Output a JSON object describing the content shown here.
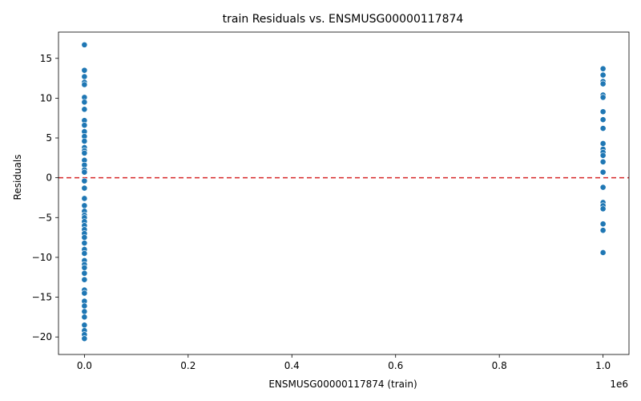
{
  "chart_data": {
    "type": "scatter",
    "title": "train Residuals vs. ENSMUSG00000117874",
    "xlabel": "ENSMUSG00000117874 (train)",
    "ylabel": "Residuals",
    "x_offset_text": "1e6",
    "xlim": [
      -50000,
      1050000
    ],
    "ylim": [
      -22.2,
      18.3
    ],
    "x_tick_labels": [
      "0.0",
      "0.2",
      "0.4",
      "0.6",
      "0.8",
      "1.0"
    ],
    "x_ticks": [
      0,
      200000,
      400000,
      600000,
      800000,
      1000000
    ],
    "y_tick_labels": [
      "−20",
      "−15",
      "−10",
      "−5",
      "0",
      "5",
      "10",
      "15"
    ],
    "y_ticks": [
      -20,
      -15,
      -10,
      -5,
      0,
      5,
      10,
      15
    ],
    "reference_line": {
      "y": 0,
      "color": "#d62728",
      "style": "dashed"
    },
    "series": [
      {
        "color": "#1f77b4",
        "points": [
          {
            "x": 0,
            "y": 16.7
          },
          {
            "x": 0,
            "y": 13.5
          },
          {
            "x": 0,
            "y": 12.7
          },
          {
            "x": 0,
            "y": 12.0
          },
          {
            "x": 0,
            "y": 11.7
          },
          {
            "x": 0,
            "y": 10.1
          },
          {
            "x": 0,
            "y": 9.5
          },
          {
            "x": 0,
            "y": 8.6
          },
          {
            "x": 0,
            "y": 7.2
          },
          {
            "x": 0,
            "y": 6.6
          },
          {
            "x": 0,
            "y": 5.8
          },
          {
            "x": 0,
            "y": 5.2
          },
          {
            "x": 0,
            "y": 4.6
          },
          {
            "x": 0,
            "y": 3.8
          },
          {
            "x": 0,
            "y": 3.4
          },
          {
            "x": 0,
            "y": 3.1
          },
          {
            "x": 0,
            "y": 2.2
          },
          {
            "x": 0,
            "y": 1.6
          },
          {
            "x": 0,
            "y": 1.0
          },
          {
            "x": 0,
            "y": 0.7
          },
          {
            "x": 0,
            "y": -0.4
          },
          {
            "x": 0,
            "y": -1.3
          },
          {
            "x": 0,
            "y": -2.6
          },
          {
            "x": 0,
            "y": -3.5
          },
          {
            "x": 0,
            "y": -4.2
          },
          {
            "x": 0,
            "y": -4.7
          },
          {
            "x": 0,
            "y": -5.0
          },
          {
            "x": 0,
            "y": -5.5
          },
          {
            "x": 0,
            "y": -6.0
          },
          {
            "x": 0,
            "y": -6.5
          },
          {
            "x": 0,
            "y": -7.0
          },
          {
            "x": 0,
            "y": -7.5
          },
          {
            "x": 0,
            "y": -8.2
          },
          {
            "x": 0,
            "y": -9.0
          },
          {
            "x": 0,
            "y": -9.5
          },
          {
            "x": 0,
            "y": -10.4
          },
          {
            "x": 0,
            "y": -10.9
          },
          {
            "x": 0,
            "y": -11.3
          },
          {
            "x": 0,
            "y": -12.0
          },
          {
            "x": 0,
            "y": -12.8
          },
          {
            "x": 0,
            "y": -14.1
          },
          {
            "x": 0,
            "y": -14.5
          },
          {
            "x": 0,
            "y": -15.5
          },
          {
            "x": 0,
            "y": -16.1
          },
          {
            "x": 0,
            "y": -16.8
          },
          {
            "x": 0,
            "y": -17.5
          },
          {
            "x": 0,
            "y": -18.5
          },
          {
            "x": 0,
            "y": -19.2
          },
          {
            "x": 0,
            "y": -19.7
          },
          {
            "x": 0,
            "y": -20.2
          },
          {
            "x": 1000000,
            "y": 13.7
          },
          {
            "x": 1000000,
            "y": 12.9
          },
          {
            "x": 1000000,
            "y": 12.1
          },
          {
            "x": 1000000,
            "y": 11.8
          },
          {
            "x": 1000000,
            "y": 10.4
          },
          {
            "x": 1000000,
            "y": 10.1
          },
          {
            "x": 1000000,
            "y": 8.3
          },
          {
            "x": 1000000,
            "y": 7.3
          },
          {
            "x": 1000000,
            "y": 6.2
          },
          {
            "x": 1000000,
            "y": 4.3
          },
          {
            "x": 1000000,
            "y": 3.6
          },
          {
            "x": 1000000,
            "y": 3.2
          },
          {
            "x": 1000000,
            "y": 2.8
          },
          {
            "x": 1000000,
            "y": 2.0
          },
          {
            "x": 1000000,
            "y": 0.7
          },
          {
            "x": 1000000,
            "y": -1.2
          },
          {
            "x": 1000000,
            "y": -3.1
          },
          {
            "x": 1000000,
            "y": -3.5
          },
          {
            "x": 1000000,
            "y": -3.9
          },
          {
            "x": 1000000,
            "y": -5.8
          },
          {
            "x": 1000000,
            "y": -6.6
          },
          {
            "x": 1000000,
            "y": -9.4
          }
        ]
      }
    ]
  }
}
